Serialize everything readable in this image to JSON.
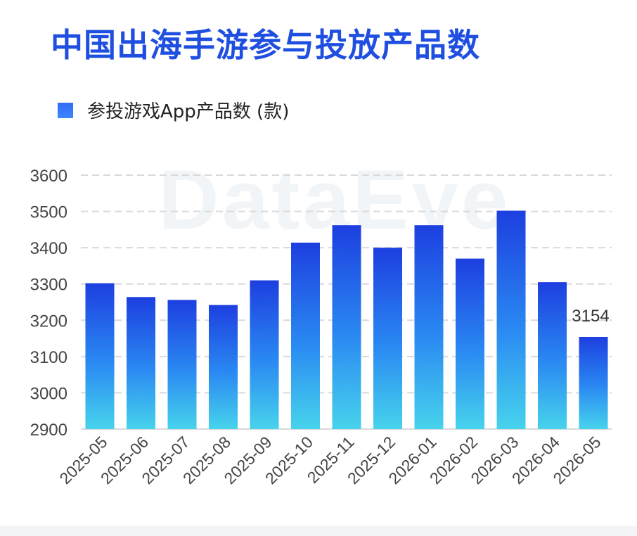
{
  "title": "中国出海手游参与投放产品数",
  "watermark": "DataEye",
  "legend": {
    "label": "参投游戏App产品数 (款)"
  },
  "colors": {
    "title": "#1f4fe0",
    "bar_top": "#1d3fe0",
    "bar_mid": "#2a8af2",
    "bar_bottom": "#47d3ec",
    "grid": "#d9d9d9"
  },
  "chart_data": {
    "type": "bar",
    "categories": [
      "2025-05",
      "2025-06",
      "2025-07",
      "2025-08",
      "2025-09",
      "2025-10",
      "2025-11",
      "2025-12",
      "2026-01",
      "2026-02",
      "2026-03",
      "2026-04",
      "2026-05"
    ],
    "series": [
      {
        "name": "参投游戏App产品数 (款)",
        "values": [
          3302,
          3264,
          3256,
          3242,
          3310,
          3414,
          3462,
          3400,
          3462,
          3370,
          3502,
          3305,
          3154
        ]
      }
    ],
    "ylim": [
      2900,
      3600
    ],
    "yticks": [
      2900,
      3000,
      3100,
      3200,
      3300,
      3400,
      3500,
      3600
    ],
    "grid": true,
    "legend_position": "top-left",
    "data_labels": [
      {
        "index": 12,
        "text": "3154"
      }
    ]
  }
}
